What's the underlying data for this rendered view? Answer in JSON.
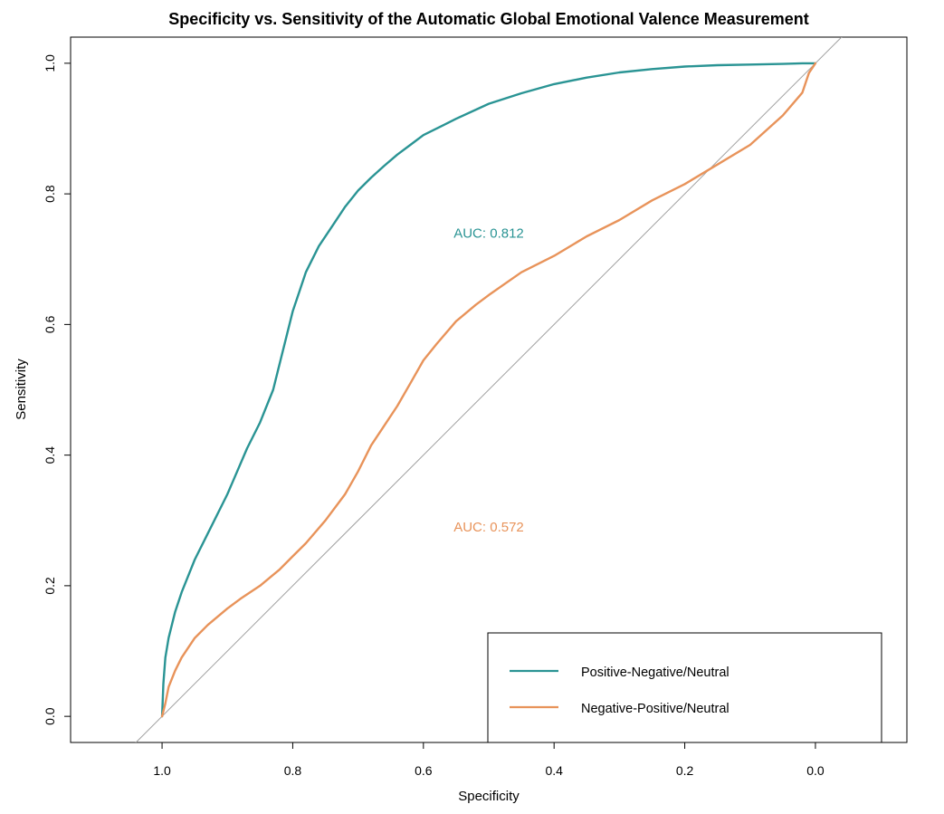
{
  "chart_data": {
    "type": "line",
    "title": "Specificity vs. Sensitivity of the Automatic Global Emotional Valence Measurement",
    "xlabel": "Specificity",
    "ylabel": "Sensitivity",
    "x_reversed": true,
    "xlim": [
      1.14,
      -0.14
    ],
    "ylim": [
      -0.04,
      1.04
    ],
    "x_ticks": [
      "1.0",
      "0.8",
      "0.6",
      "0.4",
      "0.2",
      "0.0"
    ],
    "y_ticks": [
      "0.0",
      "0.2",
      "0.4",
      "0.6",
      "0.8",
      "1.0"
    ],
    "grid": false,
    "legend_position": "bottom-right",
    "reference_line": {
      "description": "diagonal",
      "color": "#a0a0a0"
    },
    "series": [
      {
        "name": "Positive-Negative/Neutral",
        "color": "#2a9494",
        "auc_label": "AUC: 0.812",
        "auc_position": [
          0.5,
          0.74
        ],
        "specificity": [
          1.0,
          0.998,
          0.995,
          0.99,
          0.98,
          0.97,
          0.95,
          0.93,
          0.9,
          0.87,
          0.85,
          0.83,
          0.82,
          0.81,
          0.8,
          0.79,
          0.78,
          0.76,
          0.74,
          0.72,
          0.7,
          0.68,
          0.66,
          0.64,
          0.62,
          0.6,
          0.57,
          0.55,
          0.5,
          0.45,
          0.4,
          0.35,
          0.3,
          0.25,
          0.2,
          0.15,
          0.1,
          0.05,
          0.02,
          0.0
        ],
        "sensitivity": [
          0.0,
          0.05,
          0.09,
          0.12,
          0.16,
          0.19,
          0.24,
          0.28,
          0.34,
          0.41,
          0.45,
          0.5,
          0.54,
          0.58,
          0.62,
          0.65,
          0.68,
          0.72,
          0.75,
          0.78,
          0.805,
          0.825,
          0.843,
          0.86,
          0.875,
          0.89,
          0.905,
          0.915,
          0.938,
          0.954,
          0.968,
          0.978,
          0.986,
          0.991,
          0.995,
          0.997,
          0.998,
          0.999,
          1.0,
          1.0
        ]
      },
      {
        "name": "Negative-Positive/Neutral",
        "color": "#e8935a",
        "auc_label": "AUC: 0.572",
        "auc_position": [
          0.5,
          0.29
        ],
        "specificity": [
          1.0,
          0.995,
          0.99,
          0.98,
          0.97,
          0.96,
          0.95,
          0.93,
          0.9,
          0.88,
          0.85,
          0.82,
          0.8,
          0.78,
          0.75,
          0.72,
          0.7,
          0.68,
          0.66,
          0.64,
          0.62,
          0.6,
          0.58,
          0.55,
          0.52,
          0.5,
          0.45,
          0.4,
          0.35,
          0.3,
          0.25,
          0.2,
          0.15,
          0.1,
          0.05,
          0.02,
          0.01,
          0.0
        ],
        "sensitivity": [
          0.0,
          0.02,
          0.045,
          0.07,
          0.09,
          0.105,
          0.12,
          0.14,
          0.165,
          0.18,
          0.2,
          0.225,
          0.245,
          0.265,
          0.3,
          0.34,
          0.375,
          0.415,
          0.445,
          0.475,
          0.51,
          0.545,
          0.57,
          0.605,
          0.63,
          0.645,
          0.68,
          0.705,
          0.735,
          0.76,
          0.79,
          0.815,
          0.845,
          0.875,
          0.92,
          0.955,
          0.985,
          1.0
        ]
      }
    ]
  }
}
